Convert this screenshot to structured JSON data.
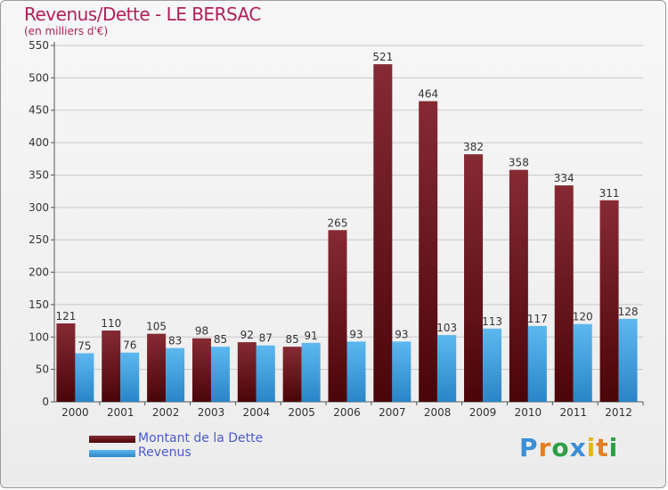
{
  "header": {
    "title": "Revenus/Dette - LE BERSAC",
    "subtitle": "(en milliers d'€)"
  },
  "legend": {
    "items": [
      {
        "label": "Montant de la Dette",
        "color": "#6b1015"
      },
      {
        "label": "Revenus",
        "color": "#3a9ad9"
      }
    ]
  },
  "logo": {
    "text": "Proxiti",
    "letters": [
      {
        "ch": "P",
        "color": "#3a8fd6"
      },
      {
        "ch": "r",
        "color": "#e67e22"
      },
      {
        "ch": "o",
        "color": "#2e9e44"
      },
      {
        "ch": "x",
        "color": "#3a8fd6"
      },
      {
        "ch": "i",
        "color": "#e2b818"
      },
      {
        "ch": "t",
        "color": "#e67e22"
      },
      {
        "ch": "i",
        "color": "#2e9e44"
      }
    ]
  },
  "chart_data": {
    "type": "bar",
    "title": "Revenus/Dette - LE BERSAC",
    "ylabel": "(en milliers d'€)",
    "xlabel": "",
    "categories": [
      "2000",
      "2001",
      "2002",
      "2003",
      "2004",
      "2005",
      "2006",
      "2007",
      "2008",
      "2009",
      "2010",
      "2011",
      "2012"
    ],
    "series": [
      {
        "name": "Montant de la Dette",
        "color": "#6b1015",
        "values": [
          121,
          110,
          105,
          98,
          92,
          85,
          265,
          521,
          464,
          382,
          358,
          334,
          311
        ]
      },
      {
        "name": "Revenus",
        "color": "#3a9ad9",
        "values": [
          75,
          76,
          83,
          85,
          87,
          91,
          93,
          93,
          103,
          113,
          117,
          120,
          128
        ]
      }
    ],
    "ylim": [
      0,
      550
    ],
    "yticks": [
      0,
      50,
      100,
      150,
      200,
      250,
      300,
      350,
      400,
      450,
      500,
      550
    ],
    "grid": true,
    "legend_position": "bottom-left"
  }
}
